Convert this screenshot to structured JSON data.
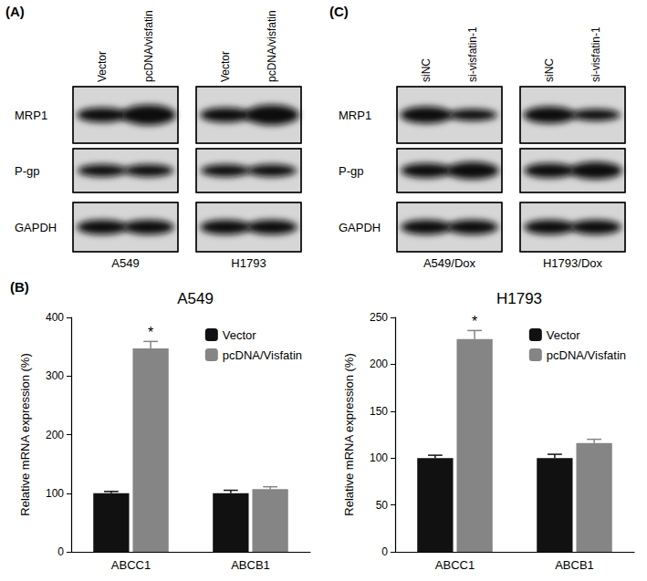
{
  "blots": [
    {
      "panel": "(A)",
      "rows": [
        "MRP1",
        "P-gp",
        "GAPDH"
      ],
      "lanes": [
        "Vector",
        "pcDNA/visfatin"
      ],
      "cell_lines": [
        "A549",
        "H1793"
      ]
    },
    {
      "panel": "(C)",
      "rows": [
        "MRP1",
        "P-gp",
        "GAPDH"
      ],
      "lanes": [
        "siNC",
        "si-visfatin-1"
      ],
      "cell_lines": [
        "A549/Dox",
        "H1793/Dox"
      ]
    }
  ],
  "chart_data": [
    {
      "panel": "(B)",
      "type": "bar",
      "title": "A549",
      "y_label": "Relative mRNA expression (%)",
      "categories": [
        "ABCC1",
        "ABCB1"
      ],
      "series": [
        {
          "name": "Vector",
          "color": "#111111",
          "values": [
            100,
            100
          ],
          "errors": [
            3,
            5
          ]
        },
        {
          "name": "pcDNA/Visfatin",
          "color": "#858585",
          "values": [
            347,
            107
          ],
          "errors": [
            12,
            4
          ],
          "annotations": [
            "*",
            null
          ]
        }
      ],
      "ylim": [
        0,
        400
      ],
      "yticks": [
        0,
        100,
        200,
        300,
        400
      ],
      "grid": false,
      "legend": "upper right"
    },
    {
      "type": "bar",
      "title": "H1793",
      "y_label": "Relative mRNA expression (%)",
      "categories": [
        "ABCC1",
        "ABCB1"
      ],
      "series": [
        {
          "name": "Vector",
          "color": "#111111",
          "values": [
            100,
            100
          ],
          "errors": [
            3,
            4
          ]
        },
        {
          "name": "pcDNA/Visfatin",
          "color": "#858585",
          "values": [
            227,
            116
          ],
          "errors": [
            9,
            4
          ],
          "annotations": [
            "*",
            null
          ]
        }
      ],
      "ylim": [
        0,
        250
      ],
      "yticks": [
        0,
        50,
        100,
        150,
        200,
        250
      ],
      "grid": false,
      "legend": "upper right"
    }
  ]
}
